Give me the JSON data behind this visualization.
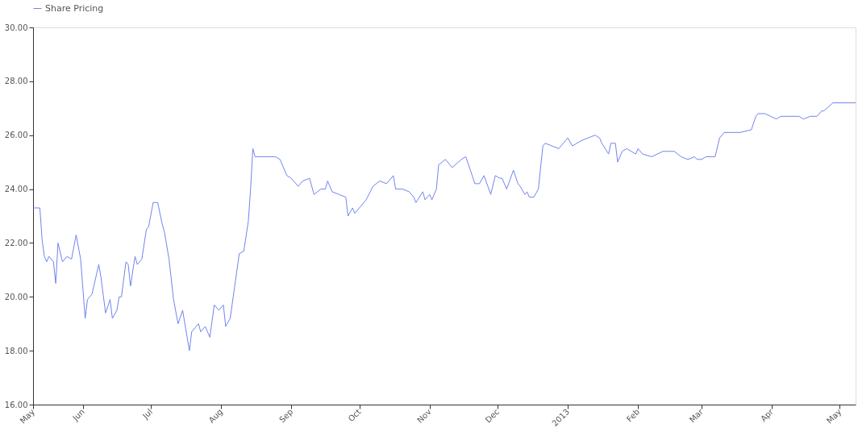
{
  "chart_data": {
    "type": "line",
    "legend": "top",
    "grid": false,
    "marker": "none",
    "line_style": "solid",
    "xlim": [
      "2012-05-10",
      "2013-05-08"
    ],
    "xticks": [
      {
        "value": "2012-05-10",
        "label": "May"
      },
      {
        "value": "2012-06-01",
        "label": "Jun"
      },
      {
        "value": "2012-07-01",
        "label": "Jul"
      },
      {
        "value": "2012-08-01",
        "label": "Aug"
      },
      {
        "value": "2012-09-01",
        "label": "Sep"
      },
      {
        "value": "2012-10-01",
        "label": "Oct"
      },
      {
        "value": "2012-11-01",
        "label": "Nov"
      },
      {
        "value": "2012-12-01",
        "label": "Dec"
      },
      {
        "value": "2013-01-01",
        "label": "2013"
      },
      {
        "value": "2013-02-01",
        "label": "Feb"
      },
      {
        "value": "2013-03-01",
        "label": "Mar"
      },
      {
        "value": "2013-04-01",
        "label": "Apr"
      },
      {
        "value": "2013-05-01",
        "label": "May"
      }
    ],
    "ylim": [
      16,
      30
    ],
    "yticks": [
      {
        "value": 16,
        "label": "16.00"
      },
      {
        "value": 18,
        "label": "18.00"
      },
      {
        "value": 20,
        "label": "20.00"
      },
      {
        "value": 22,
        "label": "22.00"
      },
      {
        "value": 24,
        "label": "24.00"
      },
      {
        "value": 26,
        "label": "26.00"
      },
      {
        "value": 28,
        "label": "28.00"
      },
      {
        "value": 30,
        "label": "30.00"
      }
    ],
    "x": [
      "2012-05-10",
      "2012-05-13",
      "2012-05-14",
      "2012-05-15",
      "2012-05-16",
      "2012-05-17",
      "2012-05-19",
      "2012-05-20",
      "2012-05-21",
      "2012-05-23",
      "2012-05-25",
      "2012-05-27",
      "2012-05-29",
      "2012-05-31",
      "2012-06-02",
      "2012-06-03",
      "2012-06-05",
      "2012-06-08",
      "2012-06-09",
      "2012-06-11",
      "2012-06-13",
      "2012-06-14",
      "2012-06-16",
      "2012-06-17",
      "2012-06-18",
      "2012-06-20",
      "2012-06-21",
      "2012-06-22",
      "2012-06-24",
      "2012-06-25",
      "2012-06-27",
      "2012-06-29",
      "2012-06-30",
      "2012-07-02",
      "2012-07-04",
      "2012-07-06",
      "2012-07-07",
      "2012-07-09",
      "2012-07-11",
      "2012-07-13",
      "2012-07-15",
      "2012-07-18",
      "2012-07-19",
      "2012-07-22",
      "2012-07-23",
      "2012-07-25",
      "2012-07-27",
      "2012-07-29",
      "2012-07-31",
      "2012-08-02",
      "2012-08-03",
      "2012-08-05",
      "2012-08-07",
      "2012-08-09",
      "2012-08-11",
      "2012-08-13",
      "2012-08-14",
      "2012-08-15",
      "2012-08-16",
      "2012-08-20",
      "2012-08-25",
      "2012-08-27",
      "2012-08-30",
      "2012-09-01",
      "2012-09-04",
      "2012-09-06",
      "2012-09-09",
      "2012-09-11",
      "2012-09-14",
      "2012-09-16",
      "2012-09-17",
      "2012-09-19",
      "2012-09-22",
      "2012-09-25",
      "2012-09-26",
      "2012-09-28",
      "2012-09-29",
      "2012-10-04",
      "2012-10-07",
      "2012-10-10",
      "2012-10-13",
      "2012-10-16",
      "2012-10-17",
      "2012-10-20",
      "2012-10-23",
      "2012-10-25",
      "2012-10-26",
      "2012-10-29",
      "2012-10-30",
      "2012-11-01",
      "2012-11-02",
      "2012-11-04",
      "2012-11-05",
      "2012-11-08",
      "2012-11-11",
      "2012-11-15",
      "2012-11-17",
      "2012-11-19",
      "2012-11-21",
      "2012-11-23",
      "2012-11-25",
      "2012-11-28",
      "2012-11-30",
      "2012-12-02",
      "2012-12-03",
      "2012-12-05",
      "2012-12-08",
      "2012-12-10",
      "2012-12-11",
      "2012-12-13",
      "2012-12-14",
      "2012-12-15",
      "2012-12-17",
      "2012-12-19",
      "2012-12-21",
      "2012-12-22",
      "2012-12-25",
      "2012-12-28",
      "2013-01-01",
      "2013-01-03",
      "2013-01-07",
      "2013-01-13",
      "2013-01-15",
      "2013-01-16",
      "2013-01-19",
      "2013-01-20",
      "2013-01-22",
      "2013-01-23",
      "2013-01-25",
      "2013-01-27",
      "2013-01-31",
      "2013-02-01",
      "2013-02-03",
      "2013-02-07",
      "2013-02-12",
      "2013-02-15",
      "2013-02-17",
      "2013-02-20",
      "2013-02-23",
      "2013-02-26",
      "2013-02-27",
      "2013-03-01",
      "2013-03-03",
      "2013-03-07",
      "2013-03-09",
      "2013-03-11",
      "2013-03-14",
      "2013-03-18",
      "2013-03-23",
      "2013-03-25",
      "2013-03-26",
      "2013-03-29",
      "2013-04-03",
      "2013-04-05",
      "2013-04-13",
      "2013-04-15",
      "2013-04-18",
      "2013-04-21",
      "2013-04-23",
      "2013-04-24",
      "2013-04-28",
      "2013-05-03",
      "2013-05-08"
    ],
    "series": [
      {
        "name": "Share Pricing",
        "color": "#7283f0",
        "values": [
          23.3,
          23.3,
          22.1,
          21.5,
          21.3,
          21.5,
          21.3,
          20.5,
          22.0,
          21.3,
          21.5,
          21.4,
          22.3,
          21.4,
          19.2,
          19.9,
          20.1,
          21.2,
          20.7,
          19.4,
          19.9,
          19.2,
          19.5,
          20.0,
          20.0,
          21.3,
          21.2,
          20.4,
          21.5,
          21.2,
          21.4,
          22.5,
          22.6,
          23.5,
          23.5,
          22.7,
          22.4,
          21.4,
          19.9,
          19.0,
          19.5,
          18.0,
          18.7,
          19.0,
          18.7,
          18.9,
          18.5,
          19.7,
          19.5,
          19.7,
          18.9,
          19.2,
          20.4,
          21.6,
          21.7,
          22.8,
          24.0,
          25.5,
          25.2,
          25.2,
          25.2,
          25.1,
          24.5,
          24.4,
          24.1,
          24.3,
          24.4,
          23.8,
          24.0,
          24.0,
          24.3,
          23.9,
          23.8,
          23.7,
          23.0,
          23.3,
          23.1,
          23.6,
          24.1,
          24.3,
          24.2,
          24.5,
          24.0,
          24.0,
          23.9,
          23.7,
          23.5,
          23.9,
          23.6,
          23.8,
          23.6,
          24.0,
          24.9,
          25.1,
          24.8,
          25.1,
          25.2,
          24.7,
          24.2,
          24.2,
          24.5,
          23.8,
          24.5,
          24.4,
          24.4,
          24.0,
          24.7,
          24.2,
          24.1,
          23.8,
          23.9,
          23.7,
          23.7,
          24.0,
          25.6,
          25.7,
          25.6,
          25.5,
          25.9,
          25.6,
          25.8,
          26.0,
          25.9,
          25.7,
          25.3,
          25.7,
          25.7,
          25.0,
          25.4,
          25.5,
          25.3,
          25.5,
          25.3,
          25.2,
          25.4,
          25.4,
          25.4,
          25.2,
          25.1,
          25.2,
          25.1,
          25.1,
          25.2,
          25.2,
          25.9,
          26.1,
          26.1,
          26.1,
          26.2,
          26.7,
          26.8,
          26.8,
          26.6,
          26.7,
          26.7,
          26.6,
          26.7,
          26.7,
          26.9,
          26.9,
          27.2,
          27.2,
          27.2
        ]
      }
    ]
  }
}
